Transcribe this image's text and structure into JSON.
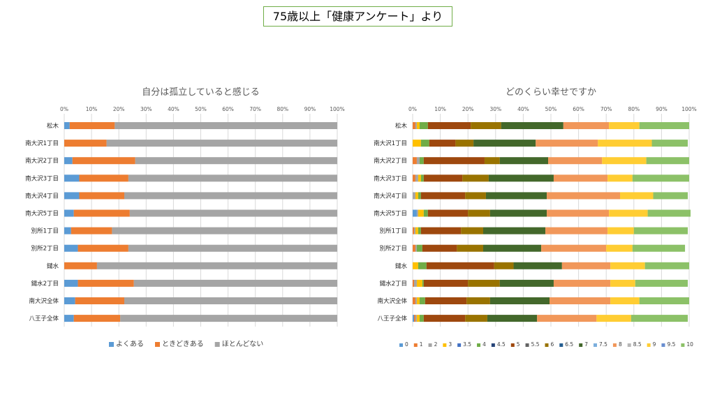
{
  "main_title": "75歳以上「健康アンケート」より",
  "chart_data": [
    {
      "type": "bar",
      "orientation": "horizontal",
      "stacked": "percent",
      "title": "自分は孤立していると感じる",
      "x_ticks": [
        "0%",
        "10%",
        "20%",
        "30%",
        "40%",
        "50%",
        "60%",
        "70%",
        "80%",
        "90%",
        "100%"
      ],
      "xlim": [
        0,
        100
      ],
      "grid": true,
      "legend_position": "bottom",
      "categories": [
        "松木",
        "南大沢1丁目",
        "南大沢2丁目",
        "南大沢3丁目",
        "南大沢4丁目",
        "南大沢5丁目",
        "別所1丁目",
        "別所2丁目",
        "鑓水",
        "鑓水2丁目",
        "南大沢全体",
        "八王子全体"
      ],
      "series": [
        {
          "name": "よくある",
          "color": "#5b9bd5",
          "values": [
            2,
            0,
            3,
            5.5,
            5.5,
            3.5,
            2.5,
            5,
            0,
            5,
            4,
            3.5
          ]
        },
        {
          "name": "ときどきある",
          "color": "#ed7d31",
          "values": [
            16.5,
            15.5,
            23,
            18,
            16.5,
            20.5,
            15,
            18.5,
            12,
            20.5,
            18,
            17
          ]
        },
        {
          "name": "ほとんどない",
          "color": "#a5a5a5",
          "values": [
            81.5,
            84.5,
            74,
            76.5,
            78,
            76,
            82.5,
            76.5,
            88,
            74.5,
            78,
            79.5
          ]
        }
      ]
    },
    {
      "type": "bar",
      "orientation": "horizontal",
      "stacked": "percent",
      "title": "どのくらい幸せですか",
      "x_ticks": [
        "0%",
        "10%",
        "20%",
        "30%",
        "40%",
        "50%",
        "60%",
        "70%",
        "80%",
        "90%",
        "100%"
      ],
      "xlim": [
        0,
        100
      ],
      "grid": true,
      "legend_position": "bottom",
      "categories": [
        "松木",
        "南大沢1丁目",
        "南大沢2丁目",
        "南大沢3丁目",
        "南大沢4丁目",
        "南大沢5丁目",
        "別所1丁目",
        "別所2丁目",
        "鑓水",
        "鑓水2丁目",
        "南大沢全体",
        "八王子全体"
      ],
      "series": [
        {
          "name": "0",
          "color": "#5b9bd5",
          "values": [
            0,
            0,
            0,
            0,
            0,
            1.5,
            0,
            0,
            0,
            0,
            0,
            0.5
          ]
        },
        {
          "name": "1",
          "color": "#ed7d31",
          "values": [
            1,
            0,
            1.5,
            1,
            0,
            0,
            0.5,
            1,
            0,
            0.5,
            1,
            0.5
          ]
        },
        {
          "name": "2",
          "color": "#a5a5a5",
          "values": [
            0.5,
            0,
            1,
            1,
            1,
            0.5,
            0.5,
            0.5,
            0,
            1,
            0.5,
            0.5
          ]
        },
        {
          "name": "3",
          "color": "#ffc000",
          "values": [
            1,
            3,
            0,
            1,
            1,
            2,
            1,
            0,
            2,
            2,
            1,
            1
          ]
        },
        {
          "name": "3.5",
          "color": "#4472c4",
          "values": [
            0,
            0,
            0,
            0,
            0,
            0,
            0,
            0,
            0,
            0,
            0,
            0
          ]
        },
        {
          "name": "4",
          "color": "#70ad47",
          "values": [
            3,
            3,
            1.5,
            1,
            1,
            1.5,
            1,
            2,
            3,
            0.5,
            2,
            1.5
          ]
        },
        {
          "name": "4.5",
          "color": "#264478",
          "values": [
            0,
            0,
            0,
            0,
            0,
            0,
            0,
            0,
            0,
            0,
            0,
            0
          ]
        },
        {
          "name": "5",
          "color": "#9e480e",
          "values": [
            15.5,
            9.5,
            22,
            14,
            16,
            14.5,
            14.5,
            12.5,
            24.5,
            16,
            15,
            15
          ]
        },
        {
          "name": "5.5",
          "color": "#636363",
          "values": [
            0,
            0,
            0,
            0,
            0,
            0,
            0,
            0,
            0,
            0,
            0,
            0
          ]
        },
        {
          "name": "6",
          "color": "#997300",
          "values": [
            11,
            6.5,
            5.5,
            9.5,
            7.5,
            8,
            8,
            9.5,
            7,
            11.5,
            8.5,
            8
          ]
        },
        {
          "name": "6.5",
          "color": "#255e91",
          "values": [
            0,
            0,
            0,
            0,
            0,
            0,
            0,
            0,
            0,
            0,
            0,
            0
          ]
        },
        {
          "name": "7",
          "color": "#43682b",
          "values": [
            22.5,
            22.5,
            17.5,
            23.5,
            22,
            20.5,
            22.5,
            21,
            17.5,
            19.5,
            21.5,
            18
          ]
        },
        {
          "name": "7.5",
          "color": "#7cafdd",
          "values": [
            0,
            0,
            0,
            0,
            0,
            0,
            0,
            0,
            0,
            0,
            0,
            0
          ]
        },
        {
          "name": "8",
          "color": "#f1975a",
          "values": [
            16.5,
            22.5,
            19.5,
            19.5,
            26.5,
            22.5,
            22.5,
            23.5,
            17.5,
            20.5,
            22,
            21.5
          ]
        },
        {
          "name": "8.5",
          "color": "#b7b7b7",
          "values": [
            0,
            0,
            0,
            0,
            0,
            0,
            0,
            0,
            0,
            0,
            0,
            0
          ]
        },
        {
          "name": "9",
          "color": "#ffcd33",
          "values": [
            11,
            19.5,
            16,
            9,
            12,
            14,
            9.5,
            9.5,
            12.5,
            9,
            10.5,
            12.5
          ]
        },
        {
          "name": "9.5",
          "color": "#698ed0",
          "values": [
            0,
            0,
            0,
            0,
            0,
            0,
            0,
            0,
            0,
            0,
            0,
            0
          ]
        },
        {
          "name": "10",
          "color": "#8cc168",
          "values": [
            18,
            13,
            15.5,
            20.5,
            12.5,
            15.5,
            19.5,
            19,
            16,
            19,
            18,
            20.5
          ]
        }
      ]
    }
  ]
}
